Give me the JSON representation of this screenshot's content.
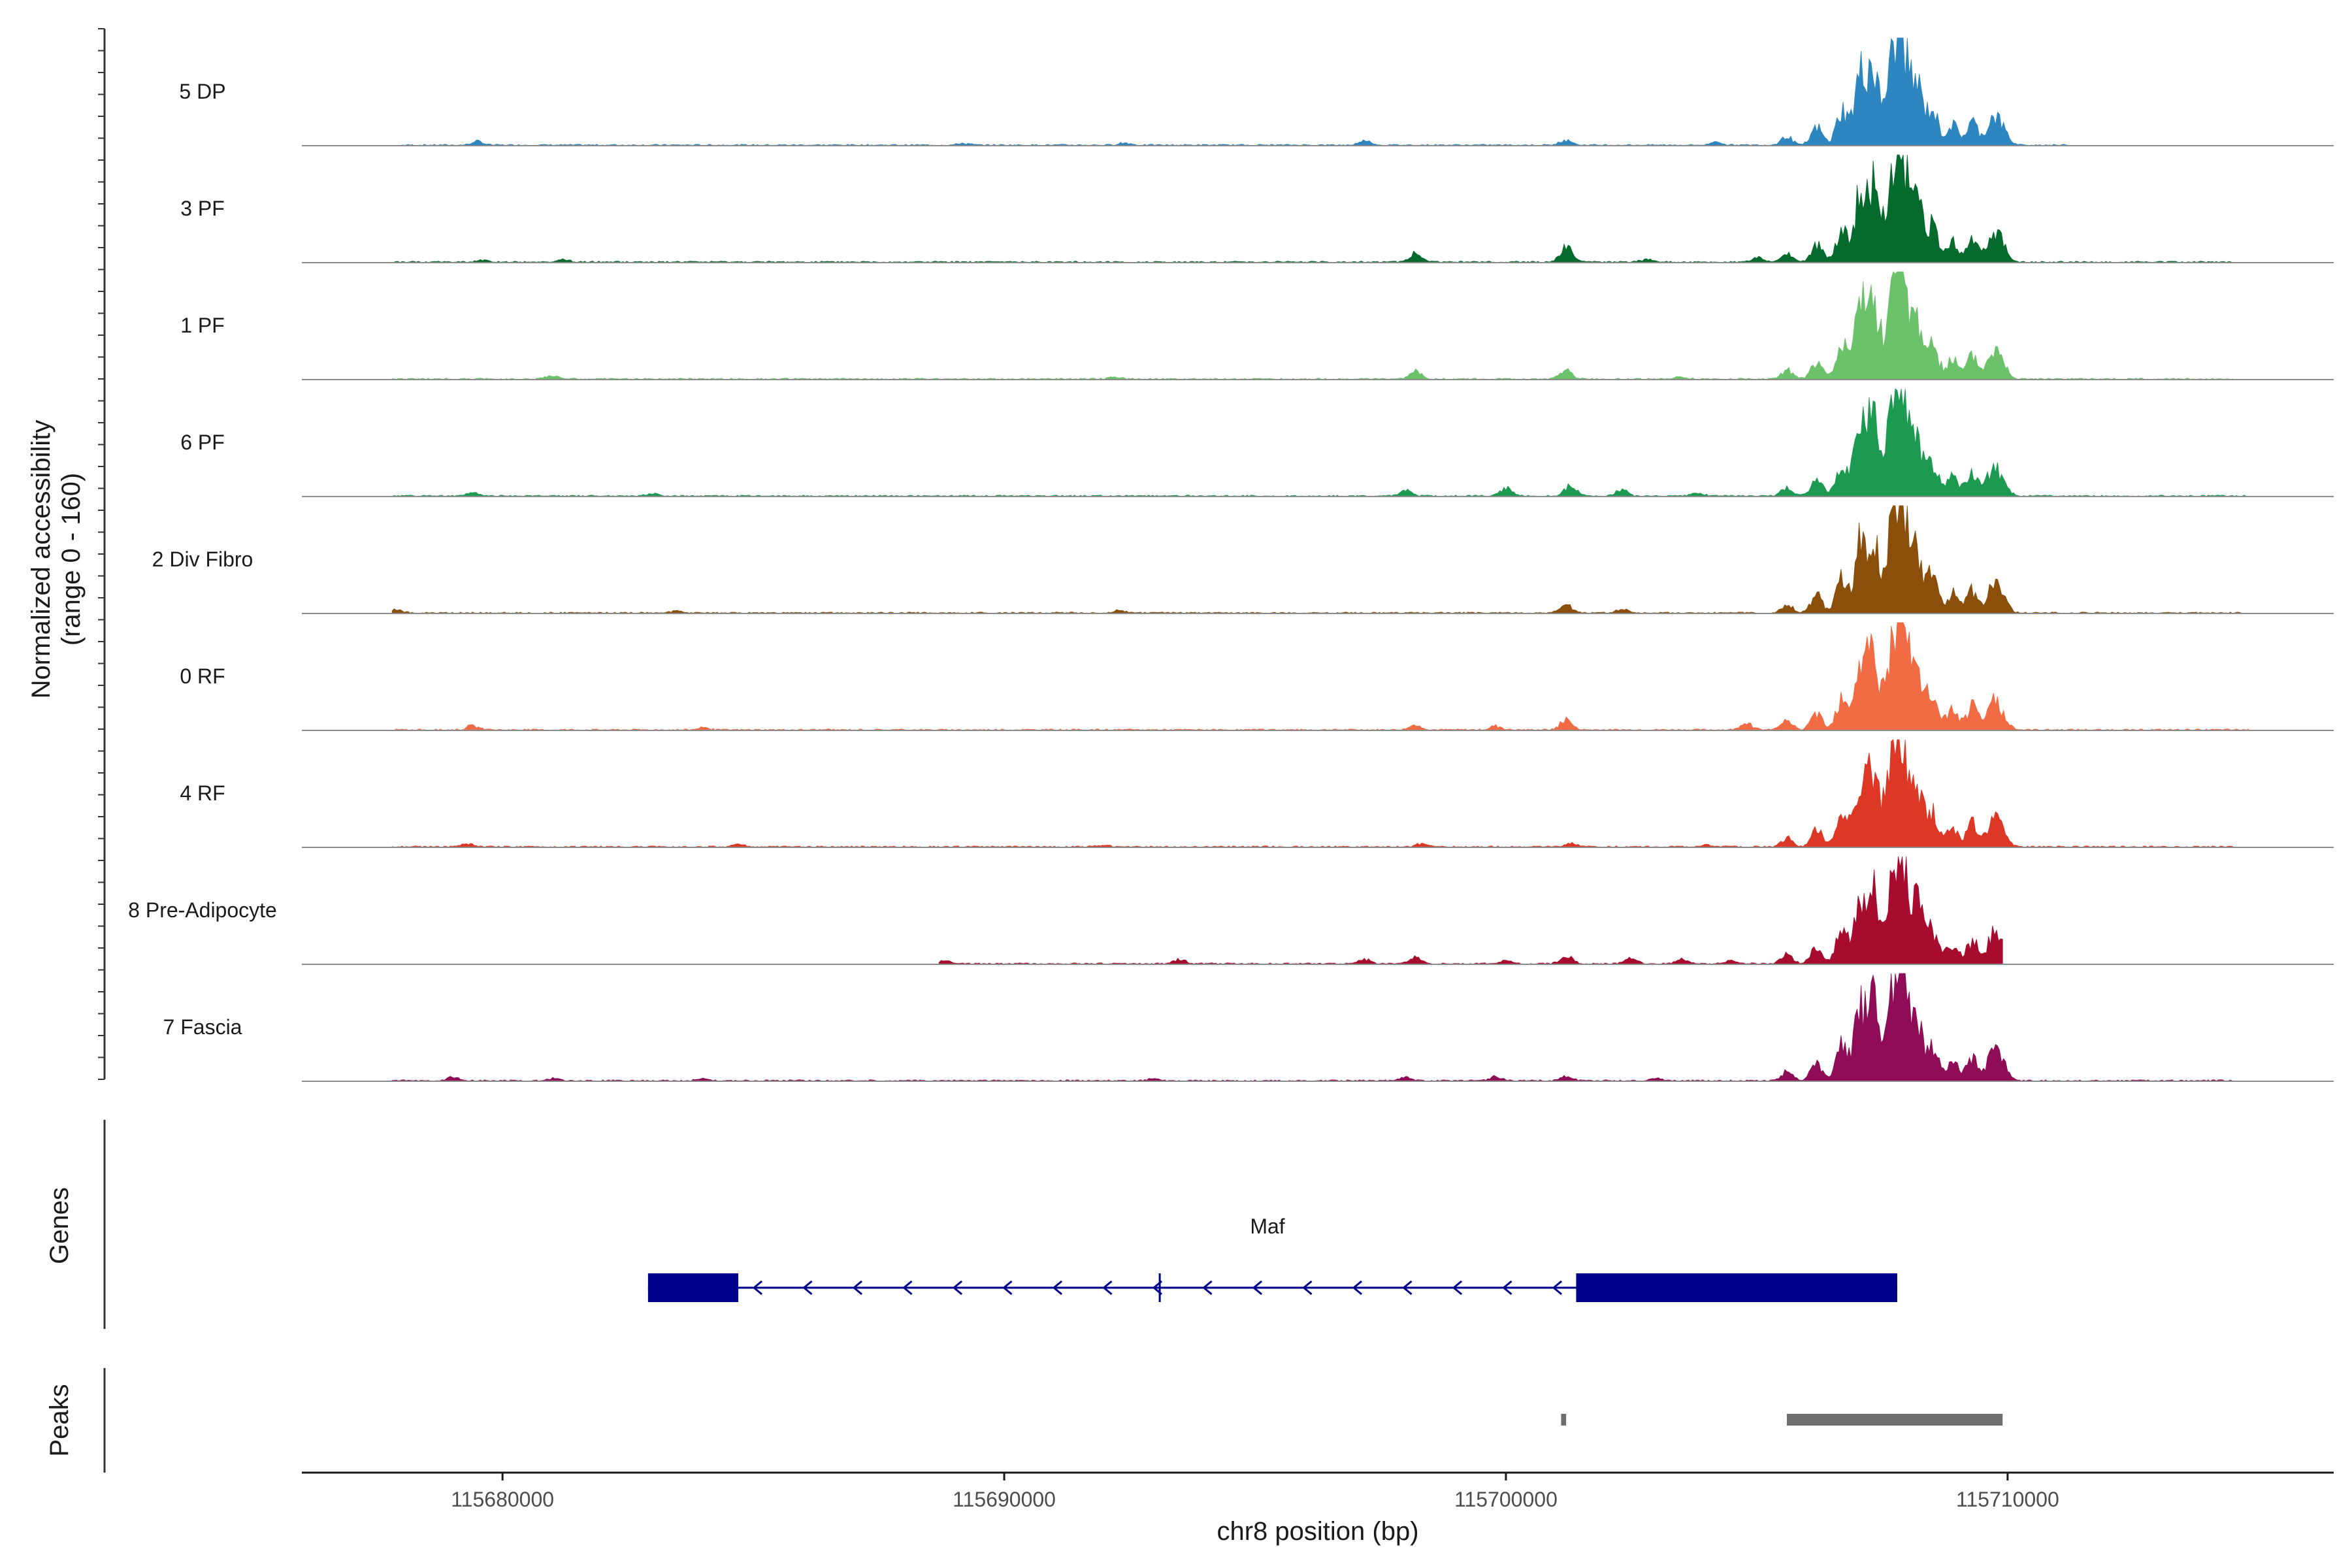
{
  "chart_data": {
    "type": "area",
    "subtype": "genome-coverage-tracks",
    "y_title_line1": "Normalized accessibility",
    "y_title_line2": "(range 0 - 160)",
    "y_range": [
      0,
      160
    ],
    "x_title": "chr8 position (bp)",
    "x_range": [
      115676000,
      115716500
    ],
    "x_ticks": [
      115680000,
      115690000,
      115700000,
      115710000
    ],
    "x_tick_labels": [
      "115680000",
      "115690000",
      "115700000",
      "115710000"
    ],
    "tracks": [
      {
        "name": "5 DP",
        "color": "#2e86c1",
        "extent": [
          115678000,
          115711200
        ],
        "blips": [
          [
            115679500,
            6
          ],
          [
            115689200,
            3
          ],
          [
            115692400,
            4
          ],
          [
            115697200,
            8
          ],
          [
            115701200,
            9
          ],
          [
            115704200,
            5
          ]
        ]
      },
      {
        "name": "3 PF",
        "color": "#046b2c",
        "extent": [
          115677800,
          115714500
        ],
        "blips": [
          [
            115679600,
            4
          ],
          [
            115681200,
            5
          ],
          [
            115698200,
            16
          ],
          [
            115701200,
            27
          ],
          [
            115702800,
            5
          ],
          [
            115705000,
            8
          ]
        ]
      },
      {
        "name": "1 PF",
        "color": "#6cc26a",
        "extent": [
          115677800,
          115714500
        ],
        "blips": [
          [
            115681000,
            6
          ],
          [
            115692200,
            4
          ],
          [
            115698200,
            12
          ],
          [
            115701200,
            16
          ],
          [
            115703500,
            4
          ]
        ]
      },
      {
        "name": "6 PF",
        "color": "#1d9a52",
        "extent": [
          115677800,
          115714800
        ],
        "blips": [
          [
            115679400,
            6
          ],
          [
            115683000,
            4
          ],
          [
            115698000,
            10
          ],
          [
            115700000,
            14
          ],
          [
            115701300,
            20
          ],
          [
            115702300,
            11
          ],
          [
            115703800,
            6
          ]
        ]
      },
      {
        "name": "2 Div Fibro",
        "color": "#8a4f0b",
        "extent": [
          115677800,
          115714800
        ],
        "blips": [
          [
            115677900,
            5
          ],
          [
            115683500,
            4
          ],
          [
            115692300,
            4
          ],
          [
            115701200,
            14
          ],
          [
            115702300,
            6
          ]
        ]
      },
      {
        "name": "0 RF",
        "color": "#f16c45",
        "extent": [
          115677800,
          115714800
        ],
        "blips": [
          [
            115679400,
            7
          ],
          [
            115684000,
            4
          ],
          [
            115698200,
            8
          ],
          [
            115699800,
            6
          ],
          [
            115701200,
            18
          ],
          [
            115704800,
            12
          ]
        ]
      },
      {
        "name": "4 RF",
        "color": "#dd3725",
        "extent": [
          115677800,
          115714500
        ],
        "blips": [
          [
            115679300,
            5
          ],
          [
            115684700,
            4
          ],
          [
            115692000,
            3
          ],
          [
            115698300,
            5
          ],
          [
            115701300,
            6
          ],
          [
            115704000,
            3
          ]
        ]
      },
      {
        "name": "8 Pre-Adipocyte",
        "color": "#a70c2f",
        "extent": [
          115688700,
          115709900
        ],
        "blips": [
          [
            115688800,
            6
          ],
          [
            115693500,
            8
          ],
          [
            115697200,
            8
          ],
          [
            115698200,
            10
          ],
          [
            115700000,
            6
          ],
          [
            115701200,
            14
          ],
          [
            115702500,
            10
          ],
          [
            115703500,
            8
          ],
          [
            115704500,
            6
          ]
        ]
      },
      {
        "name": "7 Fascia",
        "color": "#8e0d56",
        "extent": [
          115677800,
          115714500
        ],
        "blips": [
          [
            115679000,
            6
          ],
          [
            115681000,
            5
          ],
          [
            115684000,
            4
          ],
          [
            115693000,
            4
          ],
          [
            115698000,
            6
          ],
          [
            115699800,
            7
          ],
          [
            115701200,
            8
          ],
          [
            115703000,
            5
          ]
        ]
      }
    ],
    "shared_peaks": [
      [
        115705600,
        15
      ],
      [
        115706200,
        30
      ],
      [
        115706700,
        60
      ],
      [
        115707050,
        110
      ],
      [
        115707300,
        130
      ],
      [
        115707600,
        70
      ],
      [
        115707800,
        150
      ],
      [
        115707950,
        110
      ],
      [
        115708200,
        95
      ],
      [
        115708500,
        60
      ],
      [
        115708900,
        35
      ],
      [
        115709300,
        40
      ],
      [
        115709700,
        45
      ],
      [
        115709900,
        25
      ]
    ],
    "genes_title": "Genes",
    "gene": {
      "name": "Maf",
      "color": "#00008b",
      "span": [
        115682900,
        115707800
      ],
      "strand": "-",
      "exons": [
        [
          115682900,
          115684700
        ],
        [
          115701400,
          115707800
        ]
      ],
      "marker": 115693100
    },
    "peaks_title": "Peaks",
    "peak_color": "#6e6e6e",
    "peaks": [
      [
        115701100,
        115701200
      ],
      [
        115705600,
        115709900
      ]
    ]
  }
}
